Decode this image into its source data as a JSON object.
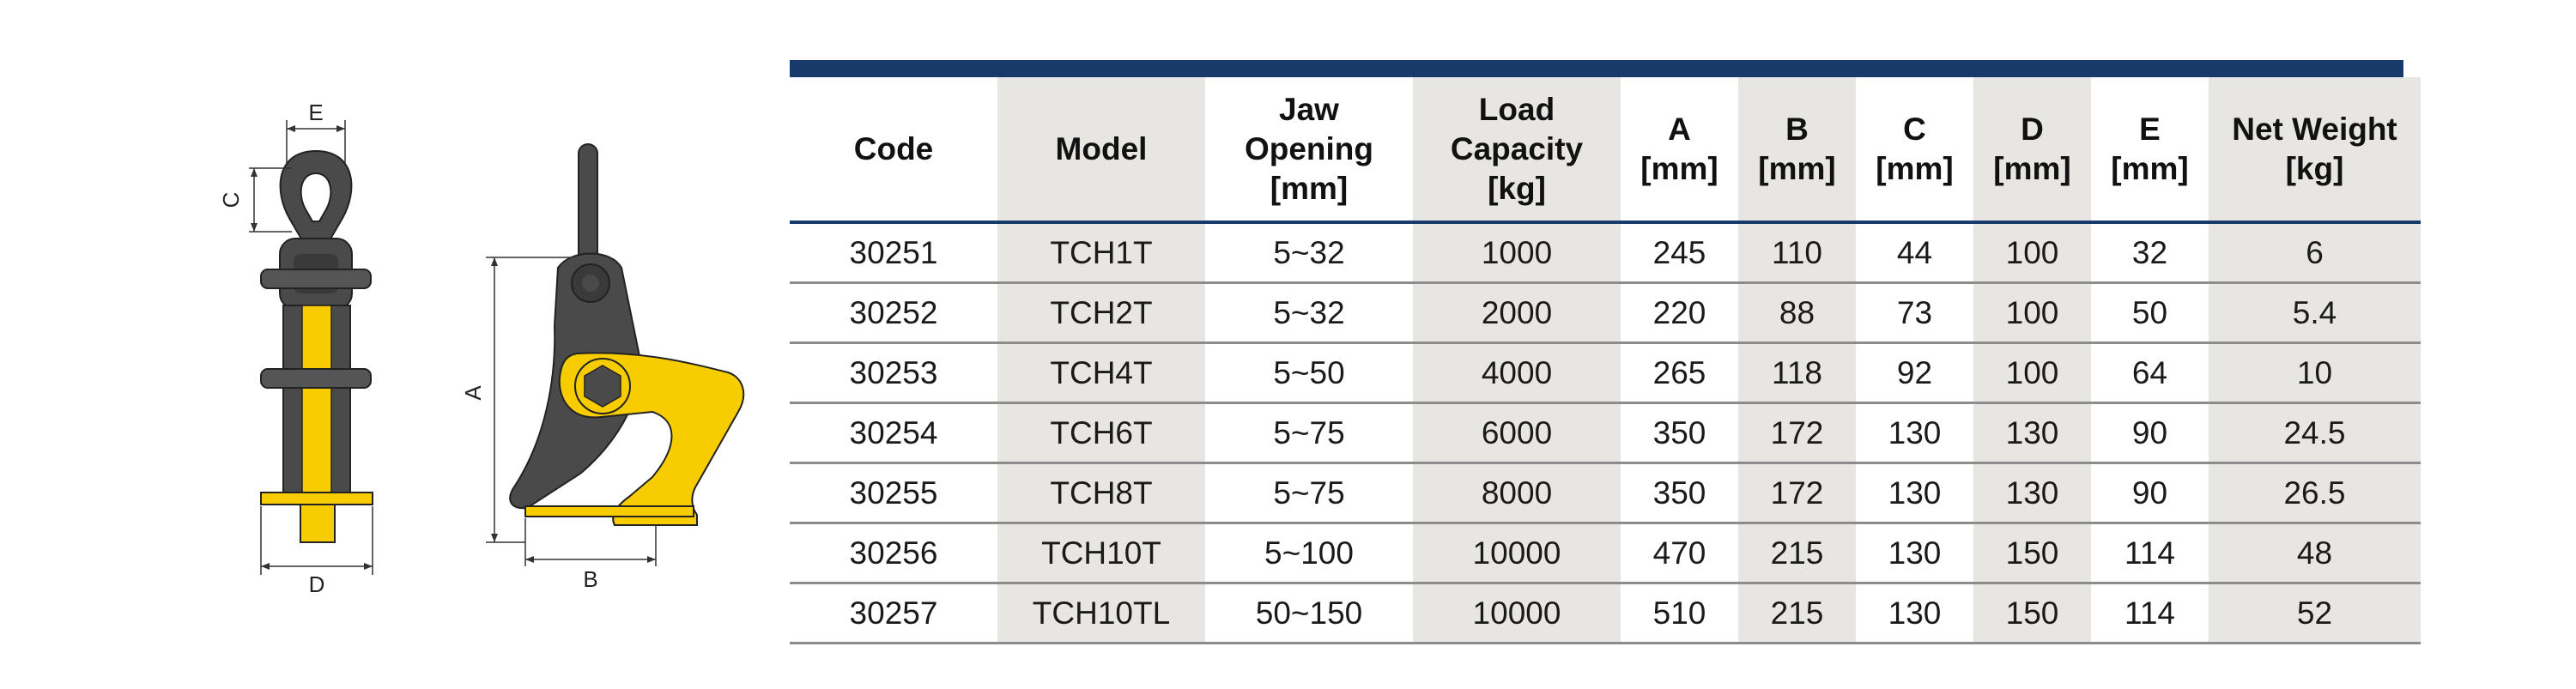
{
  "drawing": {
    "front_view": {
      "dimension_labels": {
        "e": "E",
        "c": "C",
        "d": "D"
      }
    },
    "side_view": {
      "dimension_labels": {
        "a": "A",
        "b": "B"
      }
    },
    "colors": {
      "body": "#4a4a4a",
      "jaw": "#f7cc00",
      "outline": "#222222"
    }
  },
  "table": {
    "header_bar_color": "#173a6b",
    "headers": {
      "code": "Code",
      "model": "Model",
      "jaw_opening": [
        "Jaw",
        "Opening",
        "[mm]"
      ],
      "load_capacity": [
        "Load",
        "Capacity",
        "[kg]"
      ],
      "a": [
        "A",
        "[mm]"
      ],
      "b": [
        "B",
        "[mm]"
      ],
      "c": [
        "C",
        "[mm]"
      ],
      "d": [
        "D",
        "[mm]"
      ],
      "e": [
        "E",
        "[mm]"
      ],
      "net_weight": [
        "Net Weight",
        "[kg]"
      ]
    },
    "rows": [
      [
        "30251",
        "TCH1T",
        "5~32",
        "1000",
        "245",
        "110",
        "44",
        "100",
        "32",
        "6"
      ],
      [
        "30252",
        "TCH2T",
        "5~32",
        "2000",
        "220",
        "88",
        "73",
        "100",
        "50",
        "5.4"
      ],
      [
        "30253",
        "TCH4T",
        "5~50",
        "4000",
        "265",
        "118",
        "92",
        "100",
        "64",
        "10"
      ],
      [
        "30254",
        "TCH6T",
        "5~75",
        "6000",
        "350",
        "172",
        "130",
        "130",
        "90",
        "24.5"
      ],
      [
        "30255",
        "TCH8T",
        "5~75",
        "8000",
        "350",
        "172",
        "130",
        "130",
        "90",
        "26.5"
      ],
      [
        "30256",
        "TCH10T",
        "5~100",
        "10000",
        "470",
        "215",
        "130",
        "150",
        "114",
        "48"
      ],
      [
        "30257",
        "TCH10TL",
        "50~150",
        "10000",
        "510",
        "215",
        "130",
        "150",
        "114",
        "52"
      ]
    ]
  }
}
